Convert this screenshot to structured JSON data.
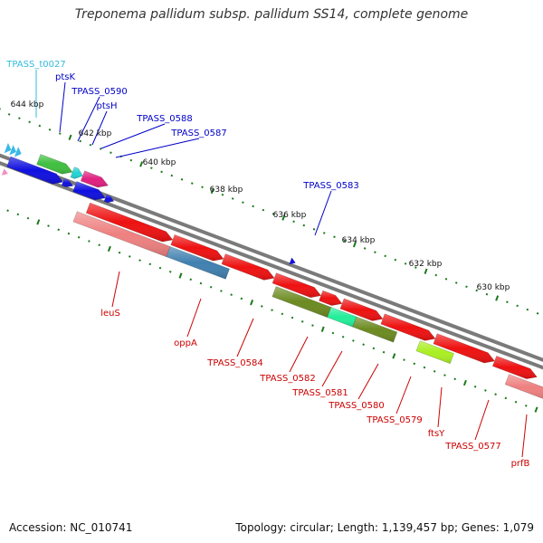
{
  "title": "Treponema pallidum subsp. pallidum SS14, complete genome",
  "footer": {
    "accession": "Accession: NC_010741",
    "summary": "Topology: circular; Length: 1,139,457 bp; Genes: 1,079"
  },
  "colors": {
    "backbone": "#7a7a7a",
    "tick": "#1a7a1a",
    "forward_label": "#0000c8",
    "reverse_label": "#cc0000",
    "trna_label": "#33bbdd"
  },
  "kbp_ticks": [
    "644 kbp",
    "642 kbp",
    "640 kbp",
    "638 kbp",
    "636 kbp",
    "634 kbp",
    "632 kbp",
    "630 kbp"
  ],
  "forward_labels": [
    {
      "text": "TPASS_t0027",
      "kind": "trna"
    },
    {
      "text": "ptsK",
      "kind": "forward"
    },
    {
      "text": "TPASS_0590",
      "kind": "forward"
    },
    {
      "text": "ptsH",
      "kind": "forward"
    },
    {
      "text": "TPASS_0588",
      "kind": "forward"
    },
    {
      "text": "TPASS_0587",
      "kind": "forward"
    },
    {
      "text": "TPASS_0583",
      "kind": "forward"
    }
  ],
  "reverse_labels": [
    "leuS",
    "oppA",
    "TPASS_0584",
    "TPASS_0582",
    "TPASS_0581",
    "TPASS_0580",
    "TPASS_0579",
    "ftsY",
    "TPASS_0577",
    "prfB"
  ],
  "gene_colors": {
    "green": "#3fbf3f",
    "cyan": "#22d4d4",
    "magenta": "#e0207f",
    "blue": "#1010e0",
    "red": "#ee1111",
    "salmon": "#ee8080",
    "steelblue": "#4080b0",
    "olive": "#6b8a20",
    "spring": "#22ee99",
    "lime": "#aaee22",
    "skyblue": "#3ab8e8",
    "pink": "#f090c0"
  }
}
